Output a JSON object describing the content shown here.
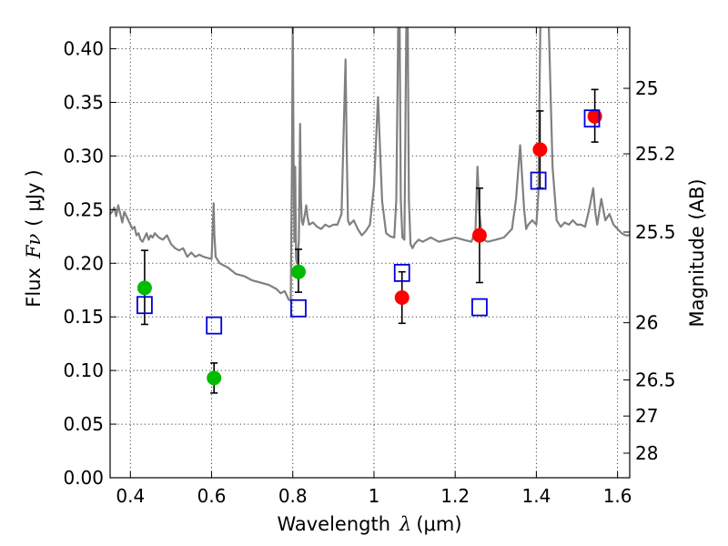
{
  "chart_data": {
    "type": "scatter",
    "xlabel_text": "Wavelength",
    "xlabel_symbol": "λ",
    "xlabel_unit": "μm",
    "ylabel_text": "Flux",
    "ylabel_symbol": "Fν",
    "ylabel_unit": "μJy",
    "y2label": "Magnitude (AB)",
    "xlim": [
      0.35,
      1.63
    ],
    "ylim": [
      0.0,
      0.42
    ],
    "grid": true,
    "x_ticks": [
      {
        "value": 0.4,
        "label": "0.4"
      },
      {
        "value": 0.6,
        "label": "0.6"
      },
      {
        "value": 0.8,
        "label": "0.8"
      },
      {
        "value": 1.0,
        "label": "1"
      },
      {
        "value": 1.2,
        "label": "1.2"
      },
      {
        "value": 1.4,
        "label": "1.4"
      },
      {
        "value": 1.6,
        "label": "1.6"
      }
    ],
    "y_ticks": [
      {
        "value": 0.0,
        "label": "0.00"
      },
      {
        "value": 0.05,
        "label": "0.05"
      },
      {
        "value": 0.1,
        "label": "0.10"
      },
      {
        "value": 0.15,
        "label": "0.15"
      },
      {
        "value": 0.2,
        "label": "0.20"
      },
      {
        "value": 0.25,
        "label": "0.25"
      },
      {
        "value": 0.3,
        "label": "0.30"
      },
      {
        "value": 0.35,
        "label": "0.35"
      },
      {
        "value": 0.4,
        "label": "0.40"
      }
    ],
    "y2_ticks": [
      {
        "value": 25.0,
        "label": "25"
      },
      {
        "value": 25.2,
        "label": "25.2"
      },
      {
        "value": 25.5,
        "label": "25.5"
      },
      {
        "value": 26.0,
        "label": "26"
      },
      {
        "value": 26.5,
        "label": "26.5"
      },
      {
        "value": 27.0,
        "label": "27"
      },
      {
        "value": 28.0,
        "label": "28"
      }
    ],
    "colors": {
      "green": "#00bb00",
      "red": "#ff0000",
      "model_box": "#0000dd",
      "sed": "#808080"
    },
    "series": [
      {
        "marker": "circle",
        "color": "green",
        "points": [
          {
            "x": 0.435,
            "y": 0.177,
            "yerr_low": 0.143,
            "yerr_high": 0.212
          },
          {
            "x": 0.606,
            "y": 0.093,
            "yerr_low": 0.079,
            "yerr_high": 0.107
          },
          {
            "x": 0.814,
            "y": 0.192,
            "yerr_low": 0.173,
            "yerr_high": 0.213
          }
        ]
      },
      {
        "marker": "circle",
        "color": "red",
        "points": [
          {
            "x": 1.069,
            "y": 0.168,
            "yerr_low": 0.144,
            "yerr_high": 0.192
          },
          {
            "x": 1.26,
            "y": 0.226,
            "yerr_low": 0.182,
            "yerr_high": 0.27
          },
          {
            "x": 1.409,
            "y": 0.306,
            "yerr_low": 0.27,
            "yerr_high": 0.342
          },
          {
            "x": 1.544,
            "y": 0.337,
            "yerr_low": 0.313,
            "yerr_high": 0.362
          }
        ]
      },
      {
        "marker": "open-square",
        "color": "model_box",
        "points": [
          {
            "x": 0.435,
            "y": 0.161
          },
          {
            "x": 0.606,
            "y": 0.142
          },
          {
            "x": 0.814,
            "y": 0.158
          },
          {
            "x": 1.069,
            "y": 0.191
          },
          {
            "x": 1.26,
            "y": 0.159
          },
          {
            "x": 1.405,
            "y": 0.277
          },
          {
            "x": 1.537,
            "y": 0.335
          }
        ]
      },
      {
        "line": "sed",
        "color": "sed",
        "x": [
          0.35,
          0.355,
          0.36,
          0.365,
          0.37,
          0.375,
          0.38,
          0.385,
          0.39,
          0.395,
          0.4,
          0.405,
          0.41,
          0.415,
          0.42,
          0.425,
          0.43,
          0.435,
          0.44,
          0.445,
          0.45,
          0.455,
          0.46,
          0.47,
          0.48,
          0.49,
          0.5,
          0.51,
          0.52,
          0.53,
          0.54,
          0.55,
          0.56,
          0.57,
          0.58,
          0.59,
          0.6,
          0.603,
          0.605,
          0.607,
          0.61,
          0.62,
          0.64,
          0.66,
          0.68,
          0.7,
          0.72,
          0.74,
          0.76,
          0.77,
          0.78,
          0.785,
          0.79,
          0.795,
          0.798,
          0.8,
          0.802,
          0.804,
          0.806,
          0.808,
          0.81,
          0.815,
          0.818,
          0.82,
          0.822,
          0.825,
          0.83,
          0.833,
          0.836,
          0.84,
          0.85,
          0.86,
          0.87,
          0.88,
          0.89,
          0.9,
          0.91,
          0.92,
          0.93,
          0.933,
          0.936,
          0.94,
          0.95,
          0.96,
          0.97,
          0.98,
          0.99,
          1.0,
          1.01,
          1.02,
          1.03,
          1.04,
          1.05,
          1.055,
          1.06,
          1.063,
          1.066,
          1.07,
          1.075,
          1.08,
          1.083,
          1.086,
          1.09,
          1.095,
          1.1,
          1.11,
          1.12,
          1.14,
          1.16,
          1.18,
          1.2,
          1.22,
          1.24,
          1.25,
          1.255,
          1.26,
          1.265,
          1.27,
          1.28,
          1.3,
          1.32,
          1.33,
          1.34,
          1.35,
          1.36,
          1.37,
          1.375,
          1.38,
          1.39,
          1.4,
          1.405,
          1.41,
          1.42,
          1.43,
          1.44,
          1.45,
          1.46,
          1.47,
          1.48,
          1.49,
          1.5,
          1.51,
          1.52,
          1.53,
          1.54,
          1.545,
          1.55,
          1.56,
          1.57,
          1.58,
          1.59,
          1.6,
          1.61,
          1.62,
          1.63
        ],
        "y": [
          0.246,
          0.248,
          0.252,
          0.244,
          0.254,
          0.246,
          0.238,
          0.248,
          0.244,
          0.24,
          0.236,
          0.232,
          0.234,
          0.226,
          0.228,
          0.222,
          0.22,
          0.224,
          0.228,
          0.222,
          0.226,
          0.224,
          0.228,
          0.224,
          0.222,
          0.226,
          0.218,
          0.214,
          0.212,
          0.214,
          0.206,
          0.21,
          0.206,
          0.208,
          0.206,
          0.205,
          0.204,
          0.236,
          0.256,
          0.226,
          0.206,
          0.2,
          0.196,
          0.19,
          0.188,
          0.184,
          0.182,
          0.18,
          0.176,
          0.172,
          0.174,
          0.17,
          0.166,
          0.165,
          0.3,
          0.43,
          0.3,
          0.22,
          0.29,
          0.205,
          0.2,
          0.22,
          0.33,
          0.26,
          0.24,
          0.236,
          0.246,
          0.254,
          0.244,
          0.236,
          0.238,
          0.234,
          0.232,
          0.236,
          0.234,
          0.236,
          0.236,
          0.246,
          0.39,
          0.3,
          0.24,
          0.236,
          0.24,
          0.232,
          0.226,
          0.23,
          0.236,
          0.272,
          0.355,
          0.258,
          0.228,
          0.225,
          0.224,
          0.26,
          0.43,
          0.43,
          0.26,
          0.224,
          0.222,
          0.43,
          0.43,
          0.26,
          0.218,
          0.214,
          0.218,
          0.222,
          0.22,
          0.224,
          0.22,
          0.222,
          0.224,
          0.222,
          0.22,
          0.23,
          0.29,
          0.246,
          0.228,
          0.222,
          0.22,
          0.222,
          0.224,
          0.228,
          0.232,
          0.26,
          0.31,
          0.25,
          0.232,
          0.236,
          0.24,
          0.236,
          0.265,
          0.43,
          0.43,
          0.43,
          0.29,
          0.24,
          0.234,
          0.238,
          0.236,
          0.24,
          0.236,
          0.236,
          0.234,
          0.25,
          0.27,
          0.248,
          0.236,
          0.26,
          0.24,
          0.246,
          0.236,
          0.232,
          0.228,
          0.226,
          0.226
        ]
      }
    ]
  }
}
